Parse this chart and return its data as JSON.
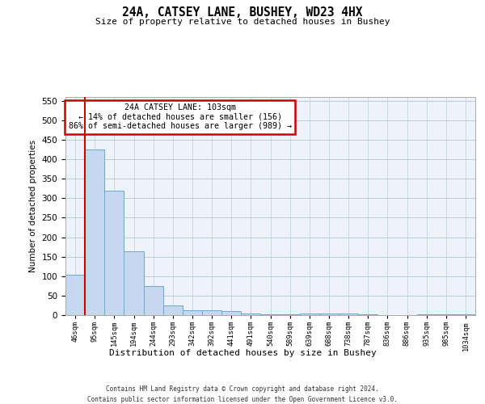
{
  "title": "24A, CATSEY LANE, BUSHEY, WD23 4HX",
  "subtitle": "Size of property relative to detached houses in Bushey",
  "xlabel": "Distribution of detached houses by size in Bushey",
  "ylabel": "Number of detached properties",
  "categories": [
    "46sqm",
    "95sqm",
    "145sqm",
    "194sqm",
    "244sqm",
    "293sqm",
    "342sqm",
    "392sqm",
    "441sqm",
    "491sqm",
    "540sqm",
    "589sqm",
    "639sqm",
    "688sqm",
    "738sqm",
    "787sqm",
    "836sqm",
    "886sqm",
    "935sqm",
    "985sqm",
    "1034sqm"
  ],
  "values": [
    103,
    425,
    320,
    163,
    75,
    25,
    12,
    12,
    10,
    5,
    3,
    3,
    5,
    5,
    5,
    2,
    1,
    1,
    2,
    2,
    2
  ],
  "bar_color": "#c5d8f0",
  "bar_edge_color": "#6aaad4",
  "vline_x": 0.5,
  "vline_color": "#cc0000",
  "annotation_text": "24A CATSEY LANE: 103sqm\n← 14% of detached houses are smaller (156)\n86% of semi-detached houses are larger (989) →",
  "annotation_box_color": "#ffffff",
  "annotation_box_edge_color": "#cc0000",
  "ylim": [
    0,
    560
  ],
  "yticks": [
    0,
    50,
    100,
    150,
    200,
    250,
    300,
    350,
    400,
    450,
    500,
    550
  ],
  "grid_color": "#bbccdd",
  "background_color": "#eef2fa",
  "footer_line1": "Contains HM Land Registry data © Crown copyright and database right 2024.",
  "footer_line2": "Contains public sector information licensed under the Open Government Licence v3.0."
}
